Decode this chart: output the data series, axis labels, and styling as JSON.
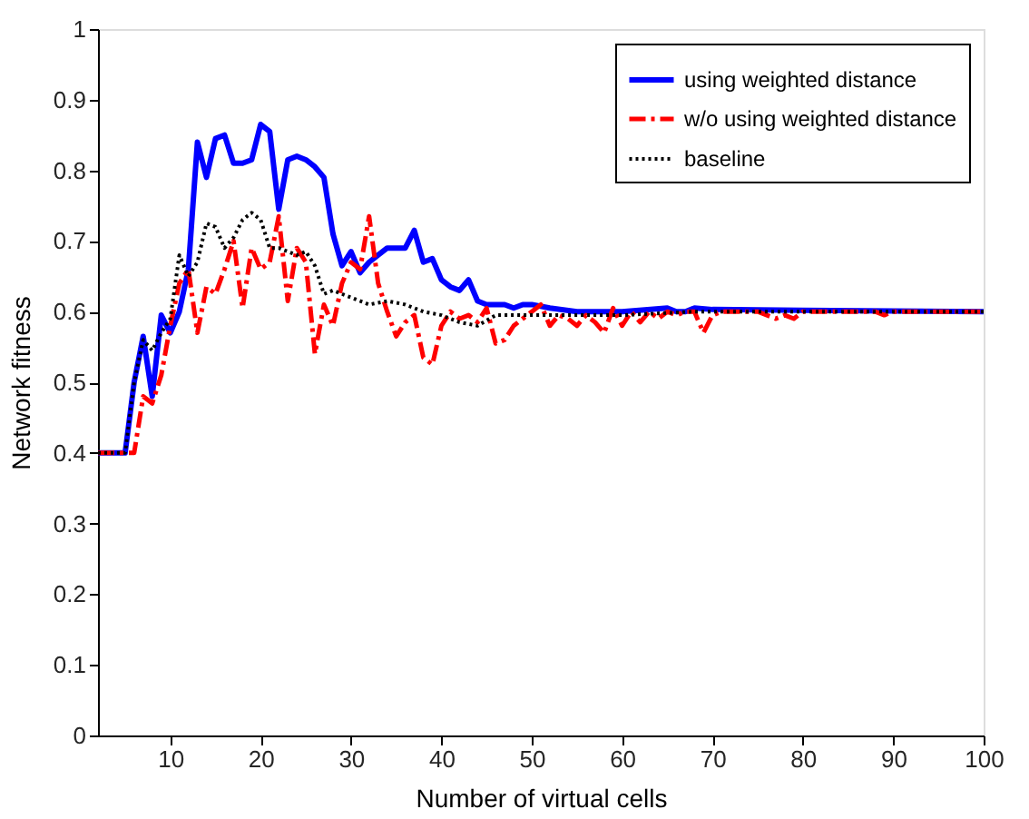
{
  "chart_data": {
    "type": "line",
    "xlabel": "Number of virtual cells",
    "ylabel": "Network fitness",
    "xlim": [
      2,
      100
    ],
    "xticks": [
      10,
      20,
      30,
      40,
      50,
      60,
      70,
      80,
      90,
      100
    ],
    "ylim": [
      0,
      1
    ],
    "yticks": [
      0,
      0.1,
      0.2,
      0.3,
      0.4,
      0.5,
      0.6,
      0.7,
      0.8,
      0.9,
      1
    ],
    "grid": false,
    "legend": "top right",
    "marker": "none",
    "series": [
      {
        "name": "using weighted distance",
        "color": "#0000ff",
        "line_style": "solid",
        "x": [
          2,
          5,
          6,
          7,
          8,
          9,
          10,
          11,
          12,
          13,
          14,
          15,
          16,
          17,
          18,
          19,
          20,
          21,
          22,
          23,
          24,
          25,
          26,
          27,
          28,
          29,
          30,
          31,
          32,
          33,
          34,
          35,
          36,
          37,
          38,
          39,
          40,
          41,
          42,
          43,
          44,
          45,
          46,
          47,
          48,
          49,
          50,
          52,
          55,
          60,
          65,
          66,
          67,
          68,
          70,
          80,
          90,
          100
        ],
        "values": [
          0.4,
          0.4,
          0.5,
          0.565,
          0.48,
          0.595,
          0.57,
          0.6,
          0.66,
          0.84,
          0.79,
          0.845,
          0.85,
          0.81,
          0.81,
          0.815,
          0.865,
          0.855,
          0.745,
          0.815,
          0.82,
          0.815,
          0.805,
          0.79,
          0.71,
          0.665,
          0.685,
          0.655,
          0.67,
          0.68,
          0.69,
          0.69,
          0.69,
          0.715,
          0.67,
          0.675,
          0.645,
          0.635,
          0.63,
          0.645,
          0.615,
          0.61,
          0.61,
          0.61,
          0.605,
          0.61,
          0.61,
          0.605,
          0.6,
          0.6,
          0.605,
          0.6,
          0.6,
          0.605,
          0.603,
          0.602,
          0.601,
          0.6
        ]
      },
      {
        "name": "w/o using weighted distance",
        "color": "#ff0000",
        "line_style": "dashed",
        "x": [
          2,
          6,
          7,
          8,
          9,
          10,
          11,
          12,
          13,
          14,
          15,
          16,
          17,
          18,
          19,
          20,
          21,
          22,
          23,
          24,
          25,
          26,
          27,
          28,
          29,
          30,
          31,
          32,
          33,
          34,
          35,
          36,
          37,
          38,
          39,
          40,
          41,
          42,
          43,
          44,
          45,
          46,
          47,
          48,
          49,
          50,
          51,
          52,
          53,
          54,
          55,
          56,
          57,
          58,
          59,
          60,
          61,
          62,
          63,
          64,
          65,
          66,
          67,
          68,
          69,
          70,
          71,
          72,
          75,
          77,
          78,
          79,
          80,
          88,
          89,
          90,
          100
        ],
        "values": [
          0.4,
          0.4,
          0.48,
          0.47,
          0.51,
          0.58,
          0.64,
          0.66,
          0.57,
          0.635,
          0.625,
          0.66,
          0.7,
          0.605,
          0.69,
          0.66,
          0.67,
          0.735,
          0.615,
          0.69,
          0.67,
          0.54,
          0.61,
          0.58,
          0.64,
          0.67,
          0.66,
          0.735,
          0.64,
          0.6,
          0.565,
          0.585,
          0.595,
          0.535,
          0.525,
          0.58,
          0.6,
          0.59,
          0.595,
          0.585,
          0.605,
          0.555,
          0.56,
          0.58,
          0.59,
          0.6,
          0.61,
          0.58,
          0.595,
          0.59,
          0.58,
          0.595,
          0.585,
          0.57,
          0.605,
          0.58,
          0.6,
          0.585,
          0.6,
          0.59,
          0.6,
          0.595,
          0.6,
          0.6,
          0.57,
          0.595,
          0.6,
          0.6,
          0.6,
          0.59,
          0.595,
          0.59,
          0.6,
          0.6,
          0.595,
          0.6,
          0.6
        ]
      },
      {
        "name": "baseline",
        "color": "#000000",
        "line_style": "dotted",
        "x": [
          2,
          5,
          6,
          7,
          8,
          9,
          10,
          11,
          12,
          13,
          14,
          15,
          16,
          17,
          18,
          19,
          20,
          21,
          22,
          23,
          24,
          25,
          26,
          27,
          28,
          30,
          32,
          34,
          36,
          38,
          40,
          42,
          44,
          46,
          50,
          60,
          68,
          100
        ],
        "values": [
          0.4,
          0.4,
          0.5,
          0.56,
          0.545,
          0.57,
          0.59,
          0.68,
          0.65,
          0.67,
          0.725,
          0.72,
          0.69,
          0.705,
          0.73,
          0.74,
          0.73,
          0.69,
          0.69,
          0.685,
          0.68,
          0.685,
          0.665,
          0.625,
          0.63,
          0.62,
          0.61,
          0.615,
          0.61,
          0.6,
          0.595,
          0.585,
          0.58,
          0.595,
          0.595,
          0.595,
          0.6,
          0.6
        ]
      }
    ]
  }
}
